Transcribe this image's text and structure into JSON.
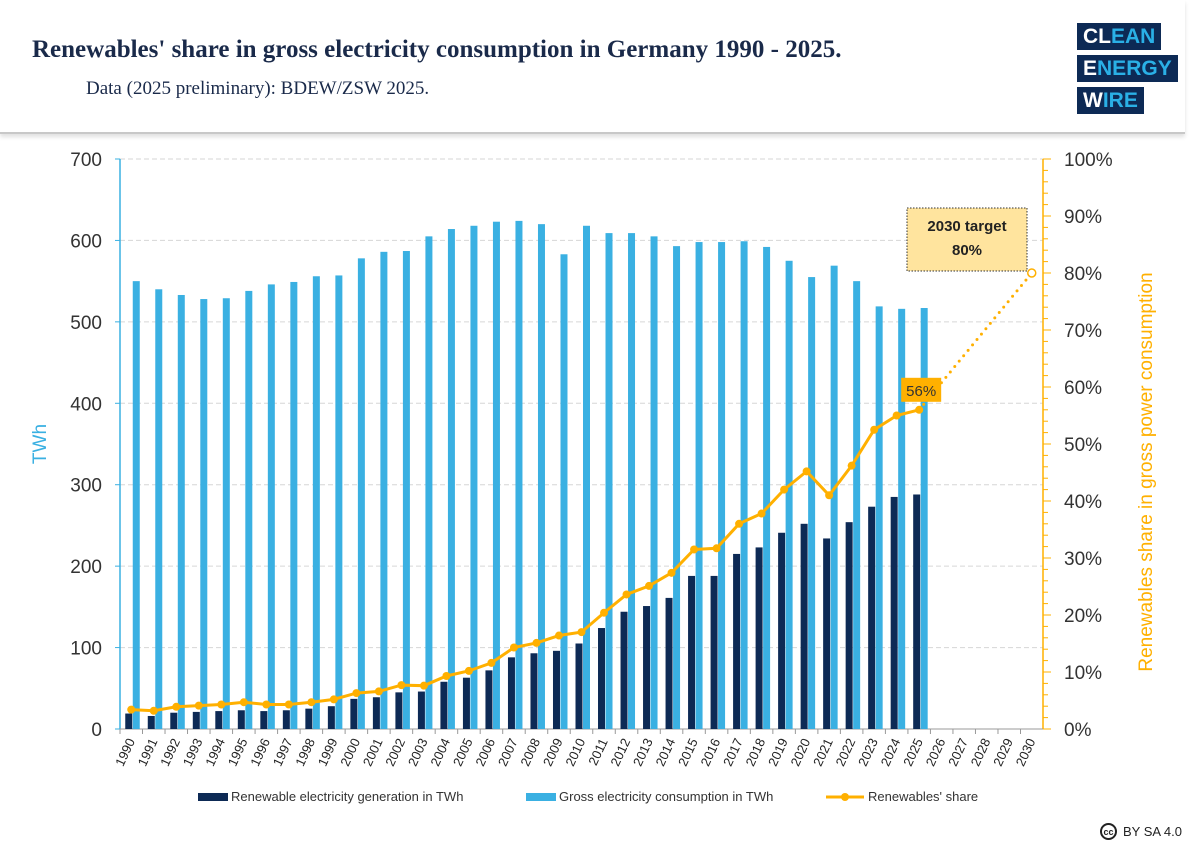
{
  "header": {
    "title": "Renewables' share in gross electricity consumption in Germany 1990 - 2025.",
    "subtitle": "Data (2025 preliminary): BDEW/ZSW 2025."
  },
  "logo": {
    "line1": [
      "CL",
      "EAN"
    ],
    "line2": [
      "E",
      "NERGY"
    ],
    "line3": [
      "W",
      "IRE"
    ]
  },
  "license": {
    "icon": "cc-icon",
    "text": "BY SA 4.0",
    "cc": "cc"
  },
  "chart_data": {
    "type": "bar+line",
    "categories": [
      "1990",
      "1991",
      "1992",
      "1993",
      "1994",
      "1995",
      "1996",
      "1997",
      "1998",
      "1999",
      "2000",
      "2001",
      "2002",
      "2003",
      "2004",
      "2005",
      "2006",
      "2007",
      "2008",
      "2009",
      "2010",
      "2011",
      "2012",
      "2013",
      "2014",
      "2015",
      "2016",
      "2017",
      "2018",
      "2019",
      "2020",
      "2021",
      "2022",
      "2023",
      "2024",
      "2025",
      "2026",
      "2027",
      "2028",
      "2029",
      "2030"
    ],
    "ylabel_left": "TWh",
    "ylim_left": [
      0,
      700
    ],
    "yticks_left": [
      "0",
      "100",
      "200",
      "300",
      "400",
      "500",
      "600",
      "700"
    ],
    "ylabel_right": "Renewables share in gross power consumption",
    "ylim_right": [
      0,
      100
    ],
    "yticks_right": [
      "0%",
      "10%",
      "20%",
      "30%",
      "40%",
      "50%",
      "60%",
      "70%",
      "80%",
      "90%",
      "100%"
    ],
    "grid": true,
    "legend_position": "bottom",
    "series": [
      {
        "name": "Renewable electricity generation in TWh",
        "type": "bar",
        "color": "#0d2a55",
        "values": [
          19,
          16,
          20,
          21,
          22,
          23,
          22,
          23,
          25,
          28,
          37,
          39,
          45,
          46,
          58,
          63,
          72,
          88,
          93,
          96,
          105,
          124,
          144,
          151,
          161,
          188,
          188,
          215,
          223,
          241,
          252,
          234,
          254,
          273,
          285,
          288,
          null,
          null,
          null,
          null,
          null
        ]
      },
      {
        "name": "Gross electricity consumption in TWh",
        "type": "bar",
        "color": "#3ab0e2",
        "values": [
          550,
          540,
          533,
          528,
          529,
          538,
          546,
          549,
          556,
          557,
          578,
          586,
          587,
          605,
          614,
          618,
          623,
          624,
          620,
          583,
          618,
          609,
          609,
          605,
          593,
          598,
          598,
          599,
          592,
          575,
          555,
          569,
          550,
          519,
          516,
          517,
          null,
          null,
          null,
          null,
          null
        ]
      },
      {
        "name": "Renewables' share",
        "type": "line",
        "color": "#ffb000",
        "axis": "right",
        "values": [
          3.4,
          3.2,
          3.9,
          4.1,
          4.3,
          4.7,
          4.3,
          4.3,
          4.7,
          5.2,
          6.3,
          6.6,
          7.7,
          7.6,
          9.3,
          10.2,
          11.6,
          14.3,
          15.1,
          16.4,
          17.0,
          20.4,
          23.6,
          25.1,
          27.4,
          31.5,
          31.7,
          36.0,
          37.8,
          42.0,
          45.2,
          41.0,
          46.2,
          52.5,
          55.0,
          56.0,
          null,
          null,
          null,
          null,
          null
        ]
      }
    ],
    "target": {
      "year": "2030",
      "value": 80,
      "from_year": "2025",
      "from_value": 56
    },
    "annotations": {
      "latest": "56%",
      "target_line1": "2030 target",
      "target_line2": "80%"
    }
  }
}
